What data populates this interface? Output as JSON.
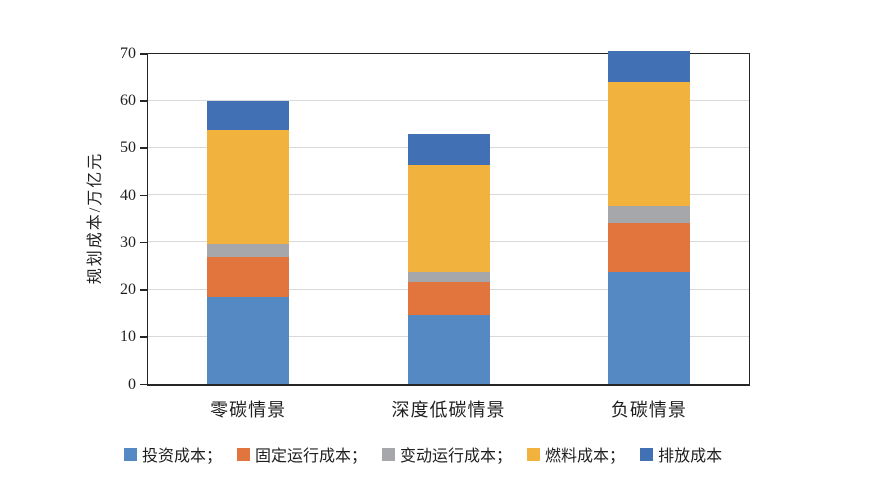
{
  "chart_data": {
    "type": "bar",
    "stacked": true,
    "title": "",
    "xlabel": "",
    "ylabel": "规划成本/万亿元",
    "ylim": [
      0,
      70
    ],
    "y_ticks": [
      0,
      10,
      20,
      30,
      40,
      50,
      60,
      70
    ],
    "grid": "horizontal",
    "legend_position": "bottom",
    "categories": [
      "零碳情景",
      "深度低碳情景",
      "负碳情景"
    ],
    "series": [
      {
        "name": "投资成本",
        "legend_label": "投资成本；",
        "color": "#5589c4",
        "values": [
          18.6,
          14.8,
          23.9
        ]
      },
      {
        "name": "固定运行成本",
        "legend_label": "固定运行成本；",
        "color": "#e2753d",
        "values": [
          8.3,
          6.9,
          10.3
        ]
      },
      {
        "name": "变动运行成本",
        "legend_label": "变动运行成本；",
        "color": "#a5a7aa",
        "values": [
          2.8,
          2.2,
          3.6
        ]
      },
      {
        "name": "燃料成本",
        "legend_label": "燃料成本；",
        "color": "#f2b33e",
        "values": [
          24.3,
          22.6,
          26.2
        ]
      },
      {
        "name": "排放成本",
        "legend_label": "排放成本",
        "color": "#4170b4",
        "values": [
          6.0,
          6.5,
          6.7
        ]
      }
    ],
    "totals": [
      60.0,
      53.0,
      70.7
    ],
    "axis_color": "#262626",
    "gridline_color": "#d9d9d9",
    "background_color": "#ffffff"
  }
}
